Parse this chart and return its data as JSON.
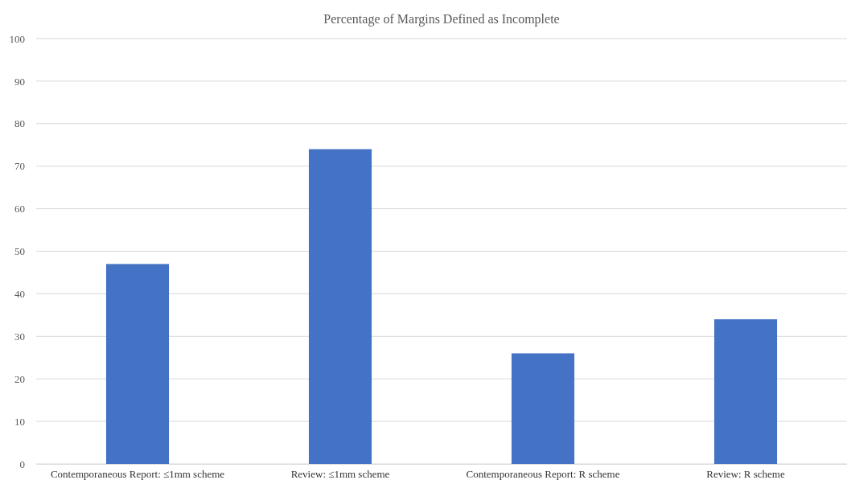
{
  "chart_data": {
    "type": "bar",
    "title": "Percentage of Margins Defined as Incomplete",
    "categories": [
      "Contemporaneous Report: ≤1mm scheme",
      "Review: ≤1mm scheme",
      "Contemporaneous Report: R scheme",
      "Review: R scheme"
    ],
    "values": [
      47,
      74,
      26,
      34
    ],
    "color": "#4472c4",
    "ylim": [
      0,
      100
    ],
    "yticks": [
      0,
      10,
      20,
      30,
      40,
      50,
      60,
      70,
      80,
      90,
      100
    ],
    "grid": "y"
  }
}
